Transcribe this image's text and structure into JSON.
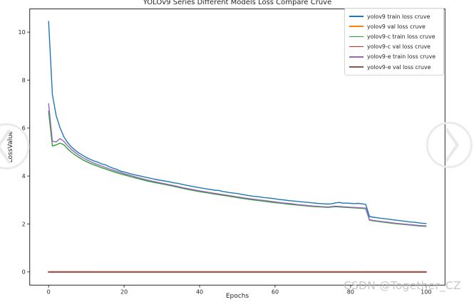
{
  "window": {
    "background": "#ffffff"
  },
  "watermark": {
    "text": "CSDN @Together_CZ",
    "color": "#bcbcbc"
  },
  "carousel": {
    "prev_icon": "chevron-left-circle",
    "next_icon": "chevron-right-circle",
    "color": "#ebebeb"
  },
  "chart_data": {
    "type": "line",
    "title": "YOLOv9 Series Different Models Loss Compare Cruve",
    "xlabel": "Epochs",
    "ylabel": "LossValue",
    "xlim": [
      -5,
      105
    ],
    "ylim": [
      -0.55,
      10.97
    ],
    "xticks": [
      0,
      20,
      40,
      60,
      80,
      100
    ],
    "yticks": [
      0,
      2,
      4,
      6,
      8,
      10
    ],
    "grid": false,
    "axis_color": "#262626",
    "legend": {
      "position": "upper-right",
      "border_color": "#d4d4d4"
    },
    "series": [
      {
        "name": "yolov9 train loss cruve",
        "color": "#1f77b4",
        "width": 1.4,
        "points": [
          [
            0,
            10.45
          ],
          [
            1,
            7.4
          ],
          [
            2,
            6.52
          ],
          [
            3,
            6.02
          ],
          [
            4,
            5.65
          ],
          [
            5,
            5.4
          ],
          [
            6,
            5.22
          ],
          [
            7,
            5.08
          ],
          [
            8,
            4.96
          ],
          [
            9,
            4.87
          ],
          [
            10,
            4.77
          ],
          [
            11,
            4.7
          ],
          [
            12,
            4.63
          ],
          [
            13,
            4.58
          ],
          [
            14,
            4.51
          ],
          [
            15,
            4.47
          ],
          [
            16,
            4.39
          ],
          [
            17,
            4.33
          ],
          [
            18,
            4.28
          ],
          [
            19,
            4.21
          ],
          [
            20,
            4.17
          ],
          [
            22,
            4.08
          ],
          [
            24,
            4.01
          ],
          [
            26,
            3.94
          ],
          [
            28,
            3.87
          ],
          [
            30,
            3.81
          ],
          [
            32,
            3.76
          ],
          [
            33,
            3.72
          ],
          [
            34,
            3.7
          ],
          [
            36,
            3.63
          ],
          [
            38,
            3.57
          ],
          [
            40,
            3.51
          ],
          [
            42,
            3.46
          ],
          [
            44,
            3.41
          ],
          [
            45,
            3.4
          ],
          [
            46,
            3.36
          ],
          [
            48,
            3.31
          ],
          [
            50,
            3.27
          ],
          [
            51,
            3.24
          ],
          [
            52,
            3.21
          ],
          [
            54,
            3.16
          ],
          [
            56,
            3.13
          ],
          [
            57,
            3.1
          ],
          [
            58,
            3.09
          ],
          [
            60,
            3.05
          ],
          [
            61,
            3.02
          ],
          [
            62,
            3.01
          ],
          [
            64,
            2.97
          ],
          [
            66,
            2.94
          ],
          [
            68,
            2.91
          ],
          [
            70,
            2.88
          ],
          [
            71,
            2.86
          ],
          [
            72,
            2.85
          ],
          [
            74,
            2.83
          ],
          [
            75,
            2.84
          ],
          [
            76,
            2.88
          ],
          [
            77,
            2.9
          ],
          [
            78,
            2.87
          ],
          [
            79,
            2.87
          ],
          [
            80,
            2.86
          ],
          [
            81,
            2.85
          ],
          [
            82,
            2.86
          ],
          [
            83,
            2.84
          ],
          [
            84,
            2.82
          ],
          [
            85,
            2.31
          ],
          [
            86,
            2.28
          ],
          [
            87,
            2.26
          ],
          [
            88,
            2.24
          ],
          [
            89,
            2.22
          ],
          [
            90,
            2.2
          ],
          [
            91,
            2.18
          ],
          [
            92,
            2.16
          ],
          [
            93,
            2.14
          ],
          [
            94,
            2.12
          ],
          [
            95,
            2.1
          ],
          [
            96,
            2.08
          ],
          [
            97,
            2.07
          ],
          [
            98,
            2.05
          ],
          [
            99,
            2.03
          ],
          [
            100,
            2.02
          ]
        ]
      },
      {
        "name": "yolov9 val loss cruve",
        "color": "#ff7f0e",
        "width": 1.5,
        "points": [
          [
            0,
            0
          ],
          [
            100,
            0
          ]
        ]
      },
      {
        "name": "yolov9-c train loss cruve",
        "color": "#2ca02c",
        "width": 1.4,
        "points": [
          [
            0,
            6.7
          ],
          [
            1,
            5.25
          ],
          [
            2,
            5.3
          ],
          [
            3,
            5.37
          ],
          [
            4,
            5.31
          ],
          [
            5,
            5.14
          ],
          [
            6,
            5.0
          ],
          [
            7,
            4.88
          ],
          [
            8,
            4.78
          ],
          [
            9,
            4.68
          ],
          [
            10,
            4.6
          ],
          [
            11,
            4.53
          ],
          [
            12,
            4.47
          ],
          [
            13,
            4.41
          ],
          [
            14,
            4.35
          ],
          [
            15,
            4.3
          ],
          [
            16,
            4.24
          ],
          [
            17,
            4.19
          ],
          [
            18,
            4.14
          ],
          [
            19,
            4.09
          ],
          [
            20,
            4.05
          ],
          [
            22,
            3.96
          ],
          [
            24,
            3.88
          ],
          [
            26,
            3.8
          ],
          [
            28,
            3.73
          ],
          [
            30,
            3.67
          ],
          [
            32,
            3.61
          ],
          [
            34,
            3.54
          ],
          [
            36,
            3.47
          ],
          [
            38,
            3.41
          ],
          [
            40,
            3.35
          ],
          [
            42,
            3.3
          ],
          [
            44,
            3.25
          ],
          [
            46,
            3.2
          ],
          [
            48,
            3.15
          ],
          [
            50,
            3.1
          ],
          [
            52,
            3.05
          ],
          [
            54,
            3.01
          ],
          [
            56,
            2.97
          ],
          [
            58,
            2.93
          ],
          [
            60,
            2.89
          ],
          [
            62,
            2.86
          ],
          [
            64,
            2.82
          ],
          [
            66,
            2.79
          ],
          [
            68,
            2.76
          ],
          [
            70,
            2.73
          ],
          [
            72,
            2.71
          ],
          [
            74,
            2.69
          ],
          [
            76,
            2.72
          ],
          [
            78,
            2.7
          ],
          [
            80,
            2.68
          ],
          [
            82,
            2.66
          ],
          [
            84,
            2.64
          ],
          [
            85,
            2.16
          ],
          [
            86,
            2.13
          ],
          [
            88,
            2.09
          ],
          [
            90,
            2.05
          ],
          [
            92,
            2.01
          ],
          [
            94,
            1.98
          ],
          [
            96,
            1.95
          ],
          [
            98,
            1.92
          ],
          [
            100,
            1.9
          ]
        ]
      },
      {
        "name": "yolov9-c val loss cruve",
        "color": "#d62728",
        "width": 2.2,
        "points": [
          [
            0,
            0
          ],
          [
            100,
            0
          ]
        ]
      },
      {
        "name": "yolov9-e train loss cruve",
        "color": "#9467bd",
        "width": 1.4,
        "points": [
          [
            0,
            7.02
          ],
          [
            1,
            5.45
          ],
          [
            2,
            5.42
          ],
          [
            3,
            5.56
          ],
          [
            4,
            5.45
          ],
          [
            5,
            5.27
          ],
          [
            6,
            5.11
          ],
          [
            7,
            4.98
          ],
          [
            8,
            4.87
          ],
          [
            9,
            4.77
          ],
          [
            10,
            4.68
          ],
          [
            11,
            4.61
          ],
          [
            12,
            4.54
          ],
          [
            13,
            4.48
          ],
          [
            14,
            4.42
          ],
          [
            15,
            4.36
          ],
          [
            16,
            4.3
          ],
          [
            17,
            4.25
          ],
          [
            18,
            4.2
          ],
          [
            19,
            4.15
          ],
          [
            20,
            4.1
          ],
          [
            22,
            4.01
          ],
          [
            24,
            3.92
          ],
          [
            26,
            3.84
          ],
          [
            28,
            3.77
          ],
          [
            30,
            3.7
          ],
          [
            32,
            3.64
          ],
          [
            34,
            3.57
          ],
          [
            36,
            3.5
          ],
          [
            38,
            3.44
          ],
          [
            40,
            3.38
          ],
          [
            42,
            3.33
          ],
          [
            44,
            3.28
          ],
          [
            46,
            3.23
          ],
          [
            48,
            3.18
          ],
          [
            50,
            3.13
          ],
          [
            52,
            3.08
          ],
          [
            54,
            3.04
          ],
          [
            56,
            3.0
          ],
          [
            58,
            2.96
          ],
          [
            60,
            2.92
          ],
          [
            62,
            2.88
          ],
          [
            64,
            2.85
          ],
          [
            66,
            2.81
          ],
          [
            68,
            2.78
          ],
          [
            70,
            2.75
          ],
          [
            72,
            2.73
          ],
          [
            74,
            2.71
          ],
          [
            76,
            2.74
          ],
          [
            78,
            2.72
          ],
          [
            80,
            2.7
          ],
          [
            82,
            2.68
          ],
          [
            84,
            2.66
          ],
          [
            85,
            2.18
          ],
          [
            86,
            2.15
          ],
          [
            88,
            2.11
          ],
          [
            90,
            2.07
          ],
          [
            92,
            2.03
          ],
          [
            94,
            2.0
          ],
          [
            96,
            1.97
          ],
          [
            98,
            1.94
          ],
          [
            100,
            1.92
          ]
        ]
      },
      {
        "name": "yolov9-e val loss cruve",
        "color": "#8c564b",
        "width": 1.5,
        "points": [
          [
            0,
            0
          ],
          [
            100,
            0
          ]
        ]
      }
    ]
  }
}
